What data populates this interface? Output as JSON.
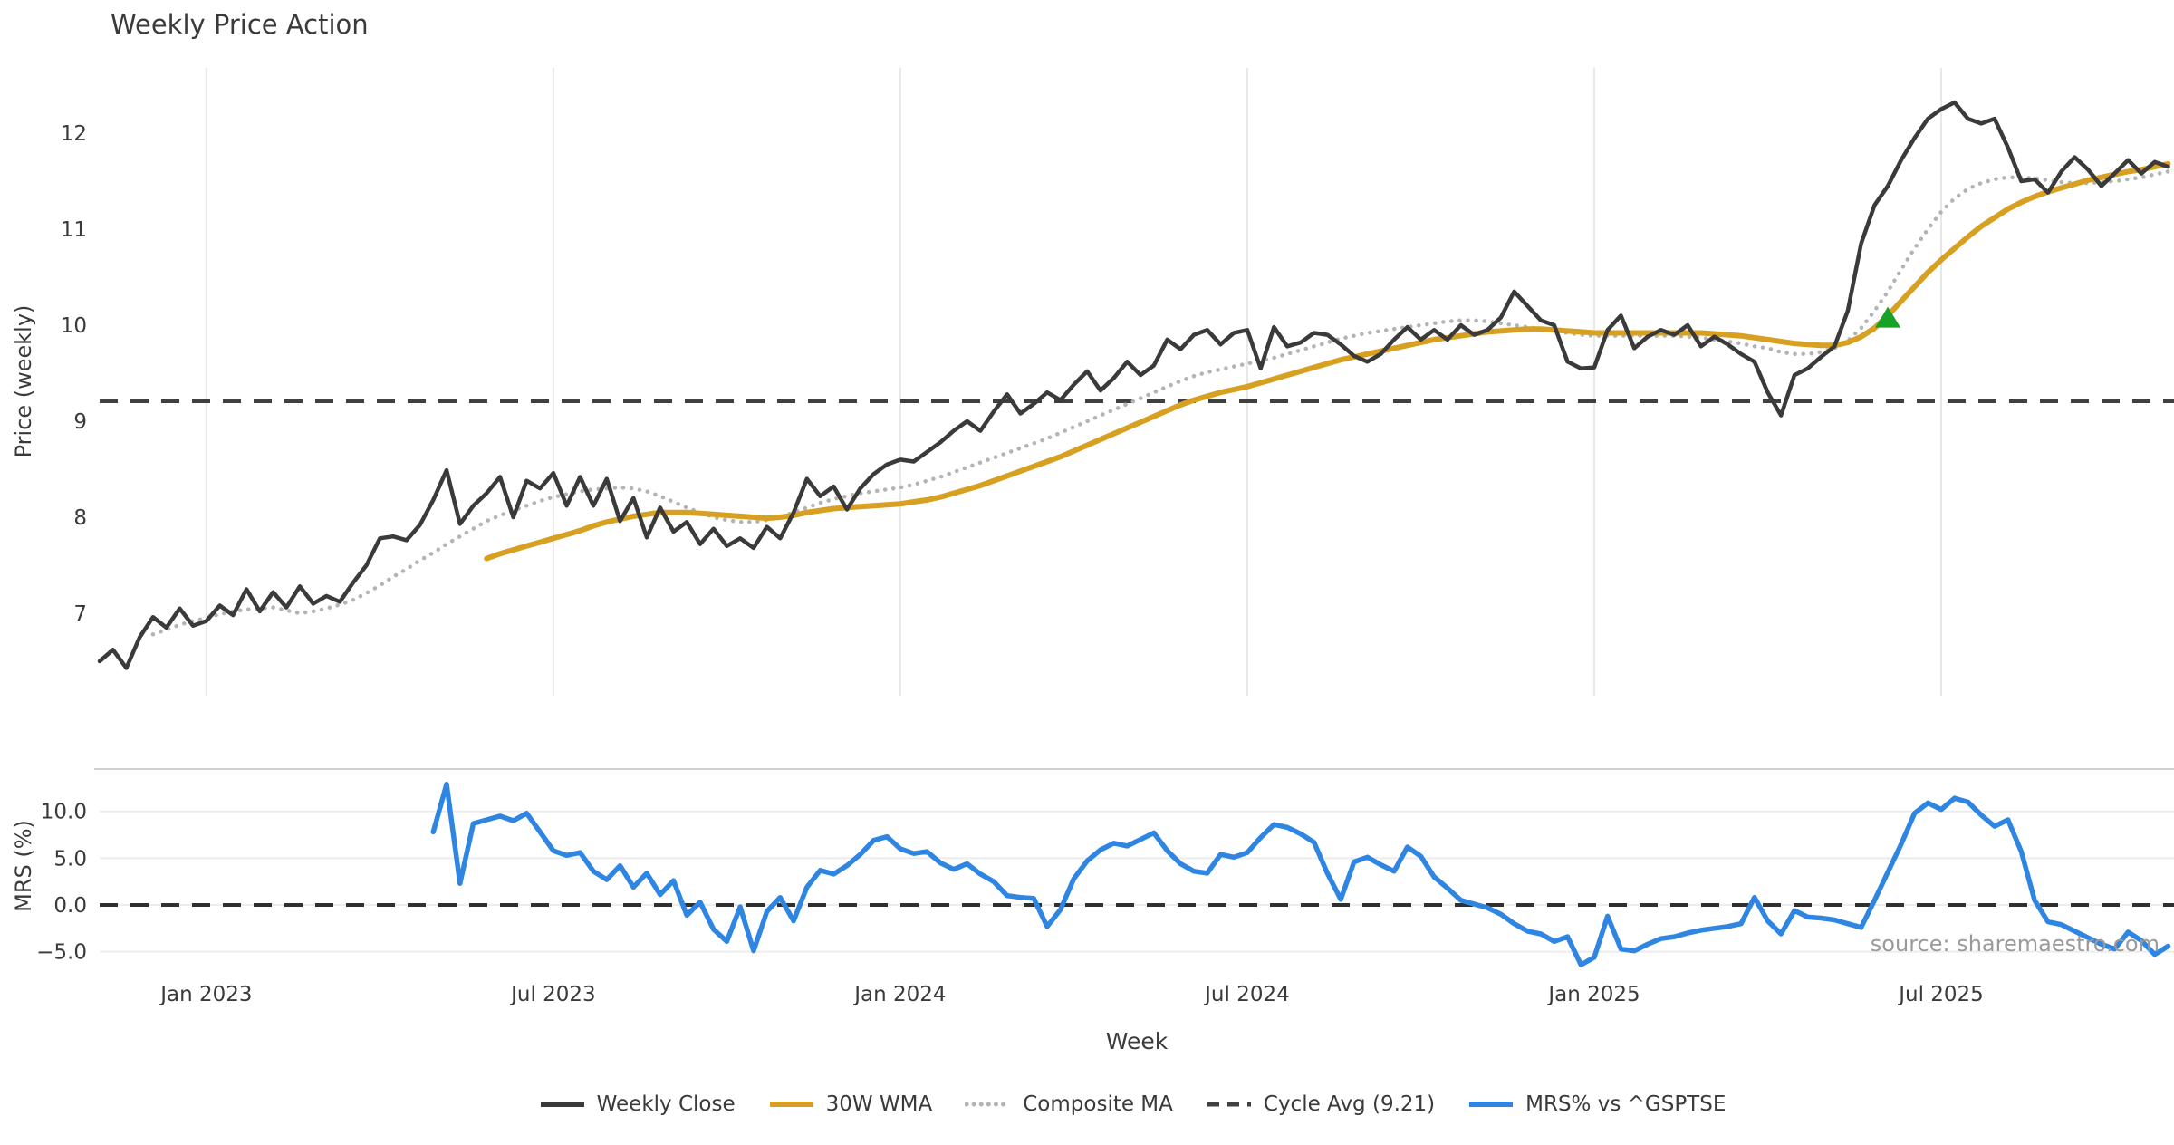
{
  "title": "Weekly Price Action",
  "source_text": "source: sharemaestro.com",
  "colors": {
    "close": "#3a3a3a",
    "wma": "#d7a021",
    "composite": "#b4b4b4",
    "cycle_avg": "#404040",
    "mrs": "#2F86E2",
    "signal_marker": "#17a225",
    "grid": "#e8e8e8",
    "spine": "#d0d0d0",
    "tick_text": "#3a3a3a",
    "source_text_color": "#9a9a9a"
  },
  "legend": [
    {
      "label": "Weekly Close",
      "color": "#3a3a3a",
      "style": "solid"
    },
    {
      "label": "30W WMA",
      "color": "#d7a021",
      "style": "solid"
    },
    {
      "label": "Composite MA",
      "color": "#b4b4b4",
      "style": "dotted"
    },
    {
      "label": "Cycle Avg (9.21)",
      "color": "#404040",
      "style": "dashed"
    },
    {
      "label": "MRS% vs ^GSPTSE",
      "color": "#2F86E2",
      "style": "solid"
    }
  ],
  "chart_data": [
    {
      "type": "line",
      "panel": "price",
      "title": "Weekly Price Action",
      "xlabel": "Week",
      "ylabel": "Price (weekly)",
      "x_unit": "weekly index, week 0 = first plotted week (Nov 2022)",
      "xlim_weeks": [
        0,
        155.8
      ],
      "ylim": [
        6.1,
        12.7
      ],
      "yticks": [
        7,
        8,
        9,
        10,
        11,
        12
      ],
      "xtick_weeks": [
        8,
        34,
        60,
        86,
        112,
        138
      ],
      "xtick_labels": [
        "Jan 2023",
        "Jul 2023",
        "Jan 2024",
        "Jul 2024",
        "Jan 2025",
        "Jul 2025"
      ],
      "grid": "vertical-only",
      "cycle_avg": 9.21,
      "series": [
        {
          "name": "Weekly Close",
          "style": "solid",
          "color": "#3a3a3a",
          "start_week": 0,
          "values": [
            6.5,
            6.62,
            6.43,
            6.75,
            6.96,
            6.85,
            7.05,
            6.87,
            6.92,
            7.08,
            6.98,
            7.25,
            7.02,
            7.22,
            7.06,
            7.28,
            7.1,
            7.18,
            7.12,
            7.32,
            7.5,
            7.78,
            7.8,
            7.76,
            7.92,
            8.18,
            8.49,
            7.93,
            8.12,
            8.25,
            8.42,
            8.0,
            8.38,
            8.3,
            8.46,
            8.12,
            8.42,
            8.12,
            8.4,
            7.96,
            8.2,
            7.79,
            8.1,
            7.85,
            7.95,
            7.72,
            7.88,
            7.7,
            7.78,
            7.68,
            7.9,
            7.78,
            8.05,
            8.4,
            8.22,
            8.32,
            8.08,
            8.3,
            8.45,
            8.55,
            8.6,
            8.58,
            8.68,
            8.78,
            8.9,
            9.0,
            8.9,
            9.1,
            9.28,
            9.08,
            9.18,
            9.3,
            9.22,
            9.38,
            9.52,
            9.32,
            9.45,
            9.62,
            9.48,
            9.58,
            9.85,
            9.75,
            9.9,
            9.95,
            9.8,
            9.92,
            9.95,
            9.55,
            9.98,
            9.78,
            9.82,
            9.92,
            9.9,
            9.8,
            9.68,
            9.62,
            9.7,
            9.85,
            9.98,
            9.85,
            9.95,
            9.85,
            10.0,
            9.9,
            9.95,
            10.08,
            10.35,
            10.2,
            10.05,
            10.0,
            9.62,
            9.55,
            9.56,
            9.95,
            10.1,
            9.76,
            9.88,
            9.95,
            9.9,
            10.0,
            9.78,
            9.88,
            9.8,
            9.7,
            9.62,
            9.3,
            9.06,
            9.48,
            9.55,
            9.67,
            9.78,
            10.15,
            10.85,
            11.25,
            11.45,
            11.72,
            11.95,
            12.15,
            12.25,
            12.32,
            12.15,
            12.1,
            12.15,
            11.85,
            11.5,
            11.52,
            11.38,
            11.6,
            11.75,
            11.62,
            11.45,
            11.58,
            11.72,
            11.58,
            11.7,
            11.65
          ]
        },
        {
          "name": "30W WMA",
          "style": "solid",
          "color": "#d7a021",
          "start_week": 29,
          "values": [
            7.57,
            7.62,
            7.66,
            7.7,
            7.74,
            7.78,
            7.82,
            7.86,
            7.91,
            7.95,
            7.98,
            8.01,
            8.03,
            8.05,
            8.05,
            8.05,
            8.04,
            8.03,
            8.02,
            8.01,
            8.0,
            7.99,
            8.0,
            8.02,
            8.05,
            8.07,
            8.09,
            8.1,
            8.11,
            8.12,
            8.13,
            8.14,
            8.16,
            8.18,
            8.21,
            8.25,
            8.29,
            8.33,
            8.38,
            8.43,
            8.48,
            8.53,
            8.58,
            8.63,
            8.69,
            8.75,
            8.81,
            8.87,
            8.93,
            8.99,
            9.05,
            9.11,
            9.17,
            9.22,
            9.26,
            9.3,
            9.33,
            9.36,
            9.4,
            9.44,
            9.48,
            9.52,
            9.56,
            9.6,
            9.64,
            9.67,
            9.7,
            9.73,
            9.76,
            9.79,
            9.82,
            9.85,
            9.87,
            9.89,
            9.91,
            9.93,
            9.94,
            9.95,
            9.96,
            9.96,
            9.95,
            9.94,
            9.93,
            9.92,
            9.92,
            9.92,
            9.92,
            9.92,
            9.92,
            9.92,
            9.92,
            9.92,
            9.91,
            9.9,
            9.89,
            9.87,
            9.85,
            9.83,
            9.81,
            9.8,
            9.79,
            9.79,
            9.82,
            9.88,
            9.97,
            10.1,
            10.25,
            10.4,
            10.55,
            10.68,
            10.8,
            10.92,
            11.03,
            11.12,
            11.21,
            11.28,
            11.34,
            11.39,
            11.43,
            11.47,
            11.51,
            11.54,
            11.57,
            11.6,
            11.62,
            11.65,
            11.68
          ]
        },
        {
          "name": "Composite MA",
          "style": "dotted",
          "color": "#b4b4b4",
          "start_week": 4,
          "values": [
            6.78,
            6.83,
            6.88,
            6.92,
            6.95,
            6.99,
            7.02,
            7.04,
            7.05,
            7.06,
            7.03,
            7.0,
            7.02,
            7.05,
            7.09,
            7.14,
            7.21,
            7.29,
            7.38,
            7.46,
            7.55,
            7.63,
            7.72,
            7.8,
            7.88,
            7.96,
            8.02,
            8.07,
            8.12,
            8.17,
            8.21,
            8.24,
            8.27,
            8.29,
            8.3,
            8.31,
            8.3,
            8.27,
            8.22,
            8.16,
            8.1,
            8.05,
            8.0,
            7.97,
            7.95,
            7.95,
            7.97,
            8.0,
            8.05,
            8.1,
            8.15,
            8.19,
            8.22,
            8.25,
            8.27,
            8.29,
            8.31,
            8.34,
            8.38,
            8.42,
            8.47,
            8.52,
            8.57,
            8.62,
            8.67,
            8.72,
            8.77,
            8.82,
            8.88,
            8.94,
            9.0,
            9.06,
            9.12,
            9.18,
            9.24,
            9.3,
            9.36,
            9.42,
            9.47,
            9.51,
            9.54,
            9.57,
            9.6,
            9.63,
            9.66,
            9.7,
            9.74,
            9.78,
            9.82,
            9.86,
            9.89,
            9.92,
            9.94,
            9.96,
            9.98,
            10.0,
            10.02,
            10.04,
            10.05,
            10.05,
            10.04,
            10.02,
            10.0,
            9.98,
            9.96,
            9.94,
            9.92,
            9.9,
            9.89,
            9.89,
            9.89,
            9.89,
            9.89,
            9.89,
            9.89,
            9.88,
            9.87,
            9.85,
            9.83,
            9.81,
            9.78,
            9.76,
            9.72,
            9.7,
            9.7,
            9.72,
            9.76,
            9.84,
            9.97,
            10.15,
            10.35,
            10.58,
            10.8,
            11.0,
            11.18,
            11.32,
            11.42,
            11.48,
            11.52,
            11.54,
            11.54,
            11.53,
            11.51,
            11.49,
            11.48,
            11.48,
            11.49,
            11.5,
            11.52,
            11.54,
            11.57,
            11.6
          ]
        },
        {
          "name": "Cycle Avg (9.21)",
          "style": "dashed",
          "color": "#404040",
          "constant_value": 9.21
        }
      ],
      "markers": [
        {
          "type": "triangle-up",
          "name": "buy-signal",
          "color": "#17a225",
          "week": 134,
          "value": 10.07
        }
      ]
    },
    {
      "type": "line",
      "panel": "mrs",
      "xlabel": "Week",
      "ylabel": "MRS (%)",
      "ylim": [
        -6.5,
        14.6
      ],
      "yticks": [
        10.0,
        5.0,
        0.0,
        -5.0
      ],
      "ytick_labels": [
        "10.0",
        "5.0",
        "0.0",
        "−5.0"
      ],
      "grid": "horizontal-only",
      "zero_line_dashed": true,
      "series": [
        {
          "name": "MRS% vs ^GSPTSE",
          "style": "solid",
          "color": "#2F86E2",
          "start_week": 25,
          "values": [
            7.8,
            12.9,
            2.3,
            8.7,
            9.1,
            9.5,
            9.0,
            9.8,
            7.8,
            5.8,
            5.3,
            5.6,
            3.6,
            2.7,
            4.2,
            1.9,
            3.4,
            1.1,
            2.6,
            -1.1,
            0.3,
            -2.6,
            -3.9,
            -0.2,
            -4.9,
            -0.7,
            0.8,
            -1.7,
            1.9,
            3.7,
            3.3,
            4.2,
            5.4,
            6.9,
            7.3,
            6.0,
            5.5,
            5.7,
            4.5,
            3.8,
            4.4,
            3.3,
            2.5,
            1.0,
            0.8,
            0.7,
            -2.3,
            -0.5,
            2.8,
            4.7,
            5.9,
            6.6,
            6.3,
            7.0,
            7.7,
            5.8,
            4.4,
            3.6,
            3.4,
            5.4,
            5.1,
            5.6,
            7.2,
            8.6,
            8.3,
            7.6,
            6.7,
            3.4,
            0.6,
            4.6,
            5.1,
            4.3,
            3.6,
            6.2,
            5.2,
            3.0,
            1.8,
            0.5,
            0.1,
            -0.3,
            -1.0,
            -2.0,
            -2.8,
            -3.1,
            -3.9,
            -3.4,
            -6.4,
            -5.6,
            -1.2,
            -4.7,
            -4.9,
            -4.2,
            -3.6,
            -3.4,
            -3.0,
            -2.7,
            -2.5,
            -2.3,
            -2.0,
            0.8,
            -1.7,
            -3.1,
            -0.6,
            -1.3,
            -1.4,
            -1.6,
            -2.0,
            -2.4,
            0.5,
            3.5,
            6.5,
            9.8,
            10.9,
            10.2,
            11.4,
            11.0,
            9.6,
            8.4,
            9.1,
            5.7,
            0.5,
            -1.8,
            -2.1,
            -2.8,
            -3.5,
            -4.2,
            -4.7,
            -2.9,
            -3.8,
            -5.3,
            -4.4
          ]
        }
      ]
    }
  ]
}
